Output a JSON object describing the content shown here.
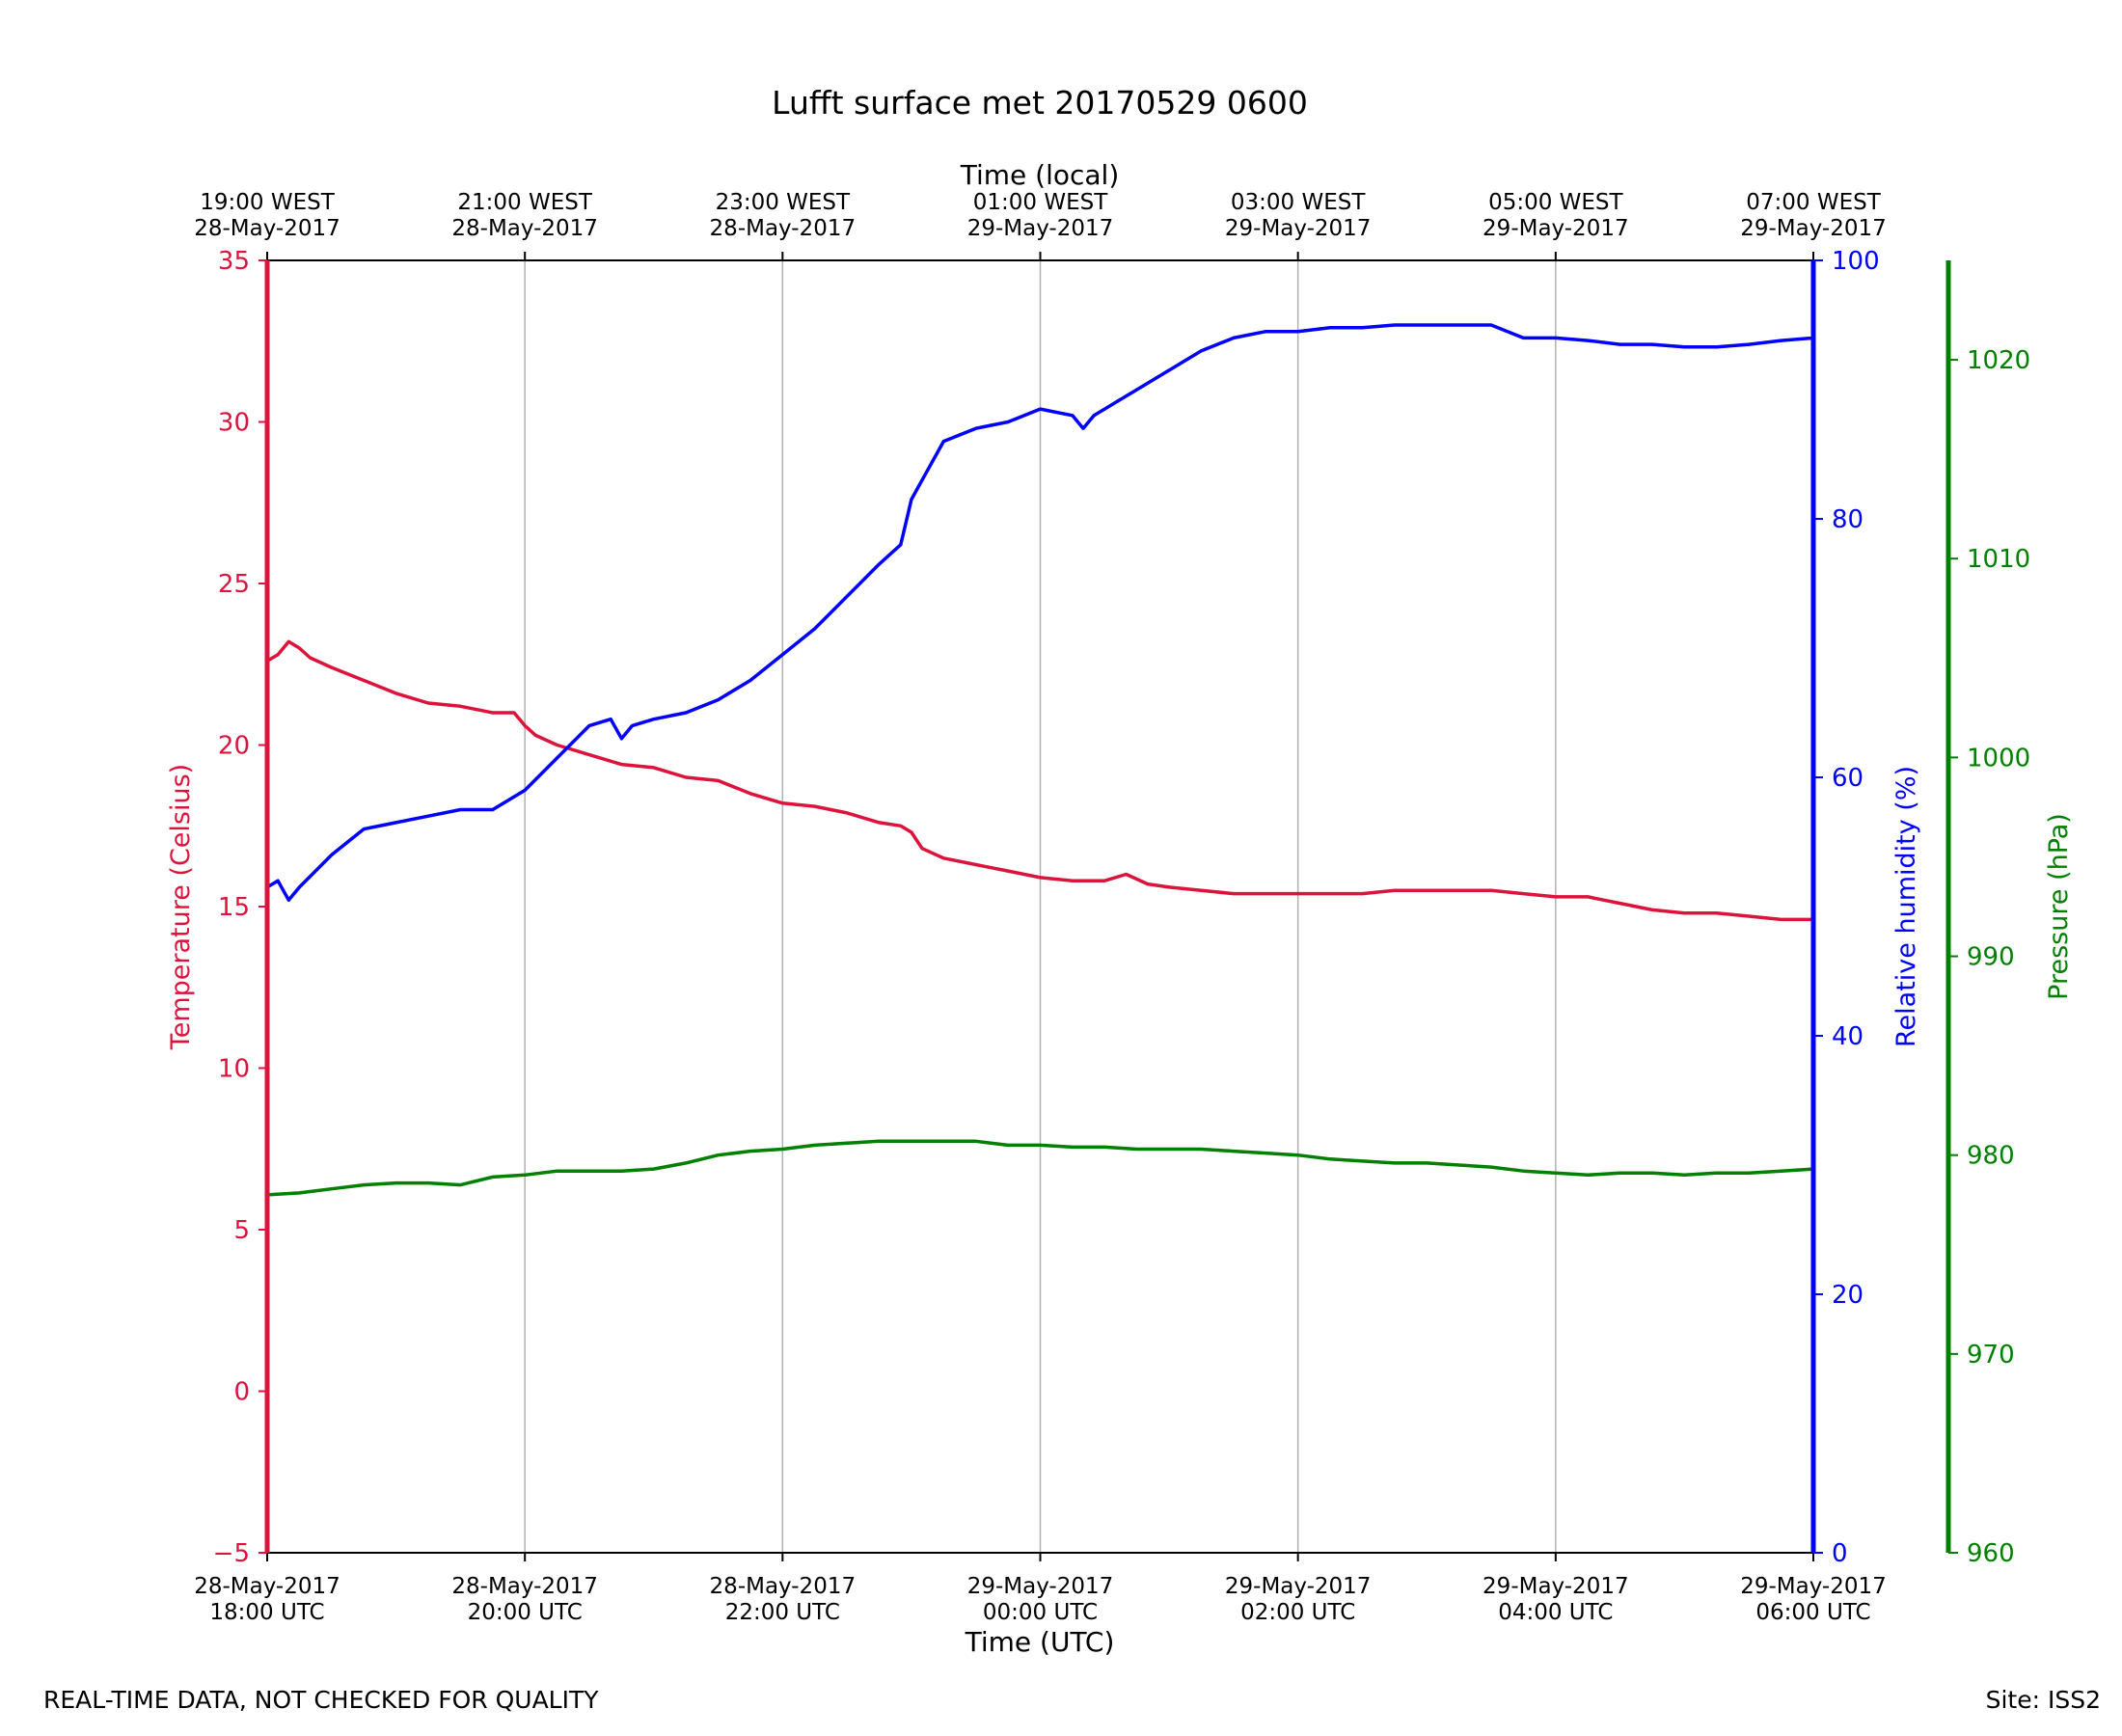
{
  "footer": {
    "quality_note": "REAL-TIME DATA, NOT CHECKED FOR QUALITY",
    "site": "Site: ISS2"
  },
  "colors": {
    "temperature": "#dc143c",
    "humidity": "#0000ff",
    "pressure": "#008000",
    "grid": "#b0b0b0",
    "axis": "#000000"
  },
  "chart_data": {
    "type": "line",
    "title": "Lufft surface met 20170529 0600",
    "xlabel": "Time (UTC)",
    "xlabel_top": "Time (local)",
    "x_ticks_bottom": [
      [
        "28-May-2017",
        "18:00 UTC"
      ],
      [
        "28-May-2017",
        "20:00 UTC"
      ],
      [
        "28-May-2017",
        "22:00 UTC"
      ],
      [
        "29-May-2017",
        "00:00 UTC"
      ],
      [
        "29-May-2017",
        "02:00 UTC"
      ],
      [
        "29-May-2017",
        "04:00 UTC"
      ],
      [
        "29-May-2017",
        "06:00 UTC"
      ]
    ],
    "x_ticks_top": [
      [
        "19:00 WEST",
        "28-May-2017"
      ],
      [
        "21:00 WEST",
        "28-May-2017"
      ],
      [
        "23:00 WEST",
        "28-May-2017"
      ],
      [
        "01:00 WEST",
        "29-May-2017"
      ],
      [
        "03:00 WEST",
        "29-May-2017"
      ],
      [
        "05:00 WEST",
        "29-May-2017"
      ],
      [
        "07:00 WEST",
        "29-May-2017"
      ]
    ],
    "x_range_utc": [
      "2017-05-28 18:00",
      "2017-05-29 06:00"
    ],
    "grid": "vertical lines at x ticks",
    "axes": {
      "temperature": {
        "label": "Temperature (Celsius)",
        "ylim": [
          -5,
          35
        ],
        "ticks": [
          "−5",
          "0",
          "5",
          "10",
          "15",
          "20",
          "25",
          "30",
          "35"
        ],
        "side": "left"
      },
      "humidity": {
        "label": "Relative humidity (%)",
        "ylim": [
          0,
          100
        ],
        "ticks": [
          "0",
          "20",
          "40",
          "60",
          "80",
          "100"
        ],
        "side": "right"
      },
      "pressure": {
        "label": "Pressure (hPa)",
        "ylim": [
          960,
          1025
        ],
        "ticks": [
          "960",
          "970",
          "980",
          "990",
          "1000",
          "1010",
          "1020"
        ],
        "side": "right-outer"
      }
    },
    "series": [
      {
        "name": "Temperature (Celsius)",
        "axis": "temperature",
        "points": [
          [
            "18:00",
            22.6
          ],
          [
            "18:05",
            22.8
          ],
          [
            "18:10",
            23.2
          ],
          [
            "18:15",
            23.0
          ],
          [
            "18:20",
            22.7
          ],
          [
            "18:30",
            22.4
          ],
          [
            "18:45",
            22.0
          ],
          [
            "19:00",
            21.6
          ],
          [
            "19:15",
            21.3
          ],
          [
            "19:30",
            21.2
          ],
          [
            "19:45",
            21.0
          ],
          [
            "19:55",
            21.0
          ],
          [
            "20:00",
            20.6
          ],
          [
            "20:05",
            20.3
          ],
          [
            "20:15",
            20.0
          ],
          [
            "20:30",
            19.7
          ],
          [
            "20:45",
            19.4
          ],
          [
            "21:00",
            19.3
          ],
          [
            "21:15",
            19.0
          ],
          [
            "21:30",
            18.9
          ],
          [
            "21:45",
            18.5
          ],
          [
            "22:00",
            18.2
          ],
          [
            "22:15",
            18.1
          ],
          [
            "22:30",
            17.9
          ],
          [
            "22:45",
            17.6
          ],
          [
            "22:55",
            17.5
          ],
          [
            "23:00",
            17.3
          ],
          [
            "23:05",
            16.8
          ],
          [
            "23:15",
            16.5
          ],
          [
            "23:30",
            16.3
          ],
          [
            "23:45",
            16.1
          ],
          [
            "00:00",
            15.9
          ],
          [
            "00:15",
            15.8
          ],
          [
            "00:30",
            15.8
          ],
          [
            "00:40",
            16.0
          ],
          [
            "00:50",
            15.7
          ],
          [
            "01:00",
            15.6
          ],
          [
            "01:15",
            15.5
          ],
          [
            "01:30",
            15.4
          ],
          [
            "01:45",
            15.4
          ],
          [
            "02:00",
            15.4
          ],
          [
            "02:15",
            15.4
          ],
          [
            "02:30",
            15.4
          ],
          [
            "02:45",
            15.5
          ],
          [
            "03:00",
            15.5
          ],
          [
            "03:15",
            15.5
          ],
          [
            "03:30",
            15.5
          ],
          [
            "03:45",
            15.4
          ],
          [
            "04:00",
            15.3
          ],
          [
            "04:15",
            15.3
          ],
          [
            "04:30",
            15.1
          ],
          [
            "04:45",
            14.9
          ],
          [
            "05:00",
            14.8
          ],
          [
            "05:15",
            14.8
          ],
          [
            "05:30",
            14.7
          ],
          [
            "05:45",
            14.6
          ],
          [
            "06:00",
            14.6
          ],
          [
            "06:15",
            14.5
          ],
          [
            "06:30",
            14.5
          ],
          [
            "06:45",
            14.6
          ],
          [
            "07:00",
            14.6
          ],
          [
            "07:12",
            14.6
          ]
        ]
      },
      {
        "name": "Relative humidity (%)",
        "axis": "humidity",
        "points": [
          [
            "18:00",
            51.5
          ],
          [
            "18:05",
            52.0
          ],
          [
            "18:10",
            50.5
          ],
          [
            "18:15",
            51.5
          ],
          [
            "18:30",
            54.0
          ],
          [
            "18:45",
            56.0
          ],
          [
            "19:00",
            56.5
          ],
          [
            "19:15",
            57.0
          ],
          [
            "19:30",
            57.5
          ],
          [
            "19:45",
            57.5
          ],
          [
            "20:00",
            59.0
          ],
          [
            "20:15",
            61.5
          ],
          [
            "20:30",
            64.0
          ],
          [
            "20:40",
            64.5
          ],
          [
            "20:45",
            63.0
          ],
          [
            "20:50",
            64.0
          ],
          [
            "21:00",
            64.5
          ],
          [
            "21:15",
            65.0
          ],
          [
            "21:30",
            66.0
          ],
          [
            "21:45",
            67.5
          ],
          [
            "22:00",
            69.5
          ],
          [
            "22:15",
            71.5
          ],
          [
            "22:30",
            74.0
          ],
          [
            "22:45",
            76.5
          ],
          [
            "22:55",
            78.0
          ],
          [
            "23:00",
            81.5
          ],
          [
            "23:05",
            83.0
          ],
          [
            "23:15",
            86.0
          ],
          [
            "23:30",
            87.0
          ],
          [
            "23:45",
            87.5
          ],
          [
            "00:00",
            88.5
          ],
          [
            "00:15",
            88.0
          ],
          [
            "00:20",
            87.0
          ],
          [
            "00:25",
            88.0
          ],
          [
            "00:35",
            89.0
          ],
          [
            "00:45",
            90.0
          ],
          [
            "01:00",
            91.5
          ],
          [
            "01:15",
            93.0
          ],
          [
            "01:30",
            94.0
          ],
          [
            "01:45",
            94.5
          ],
          [
            "02:00",
            94.5
          ],
          [
            "02:15",
            94.8
          ],
          [
            "02:30",
            94.8
          ],
          [
            "02:45",
            95.0
          ],
          [
            "03:00",
            95.0
          ],
          [
            "03:15",
            95.0
          ],
          [
            "03:30",
            95.0
          ],
          [
            "03:45",
            94.0
          ],
          [
            "04:00",
            94.0
          ],
          [
            "04:15",
            93.8
          ],
          [
            "04:30",
            93.5
          ],
          [
            "04:45",
            93.5
          ],
          [
            "05:00",
            93.3
          ],
          [
            "05:15",
            93.3
          ],
          [
            "05:30",
            93.5
          ],
          [
            "05:45",
            93.8
          ],
          [
            "06:00",
            94.0
          ],
          [
            "06:15",
            94.3
          ],
          [
            "06:30",
            94.0
          ],
          [
            "06:45",
            94.0
          ],
          [
            "07:00",
            93.5
          ],
          [
            "07:12",
            92.5
          ]
        ]
      },
      {
        "name": "Pressure (hPa)",
        "axis": "pressure",
        "points": [
          [
            "18:00",
            978.0
          ],
          [
            "18:15",
            978.1
          ],
          [
            "18:30",
            978.3
          ],
          [
            "18:45",
            978.5
          ],
          [
            "19:00",
            978.6
          ],
          [
            "19:15",
            978.6
          ],
          [
            "19:30",
            978.5
          ],
          [
            "19:45",
            978.9
          ],
          [
            "20:00",
            979.0
          ],
          [
            "20:15",
            979.2
          ],
          [
            "20:30",
            979.2
          ],
          [
            "20:45",
            979.2
          ],
          [
            "21:00",
            979.3
          ],
          [
            "21:15",
            979.6
          ],
          [
            "21:30",
            980.0
          ],
          [
            "21:45",
            980.2
          ],
          [
            "22:00",
            980.3
          ],
          [
            "22:15",
            980.5
          ],
          [
            "22:30",
            980.6
          ],
          [
            "22:45",
            980.7
          ],
          [
            "23:00",
            980.7
          ],
          [
            "23:15",
            980.7
          ],
          [
            "23:30",
            980.7
          ],
          [
            "23:45",
            980.5
          ],
          [
            "00:00",
            980.5
          ],
          [
            "00:15",
            980.4
          ],
          [
            "00:30",
            980.4
          ],
          [
            "00:45",
            980.3
          ],
          [
            "01:00",
            980.3
          ],
          [
            "01:15",
            980.3
          ],
          [
            "01:30",
            980.2
          ],
          [
            "01:45",
            980.1
          ],
          [
            "02:00",
            980.0
          ],
          [
            "02:15",
            979.8
          ],
          [
            "02:30",
            979.7
          ],
          [
            "02:45",
            979.6
          ],
          [
            "03:00",
            979.6
          ],
          [
            "03:15",
            979.5
          ],
          [
            "03:30",
            979.4
          ],
          [
            "03:45",
            979.2
          ],
          [
            "04:00",
            979.1
          ],
          [
            "04:15",
            979.0
          ],
          [
            "04:30",
            979.1
          ],
          [
            "04:45",
            979.1
          ],
          [
            "05:00",
            979.0
          ],
          [
            "05:15",
            979.1
          ],
          [
            "05:30",
            979.1
          ],
          [
            "05:45",
            979.2
          ],
          [
            "06:00",
            979.3
          ],
          [
            "06:15",
            979.3
          ],
          [
            "06:30",
            979.4
          ],
          [
            "06:45",
            979.5
          ],
          [
            "07:00",
            979.6
          ],
          [
            "07:12",
            979.6
          ]
        ]
      }
    ]
  }
}
